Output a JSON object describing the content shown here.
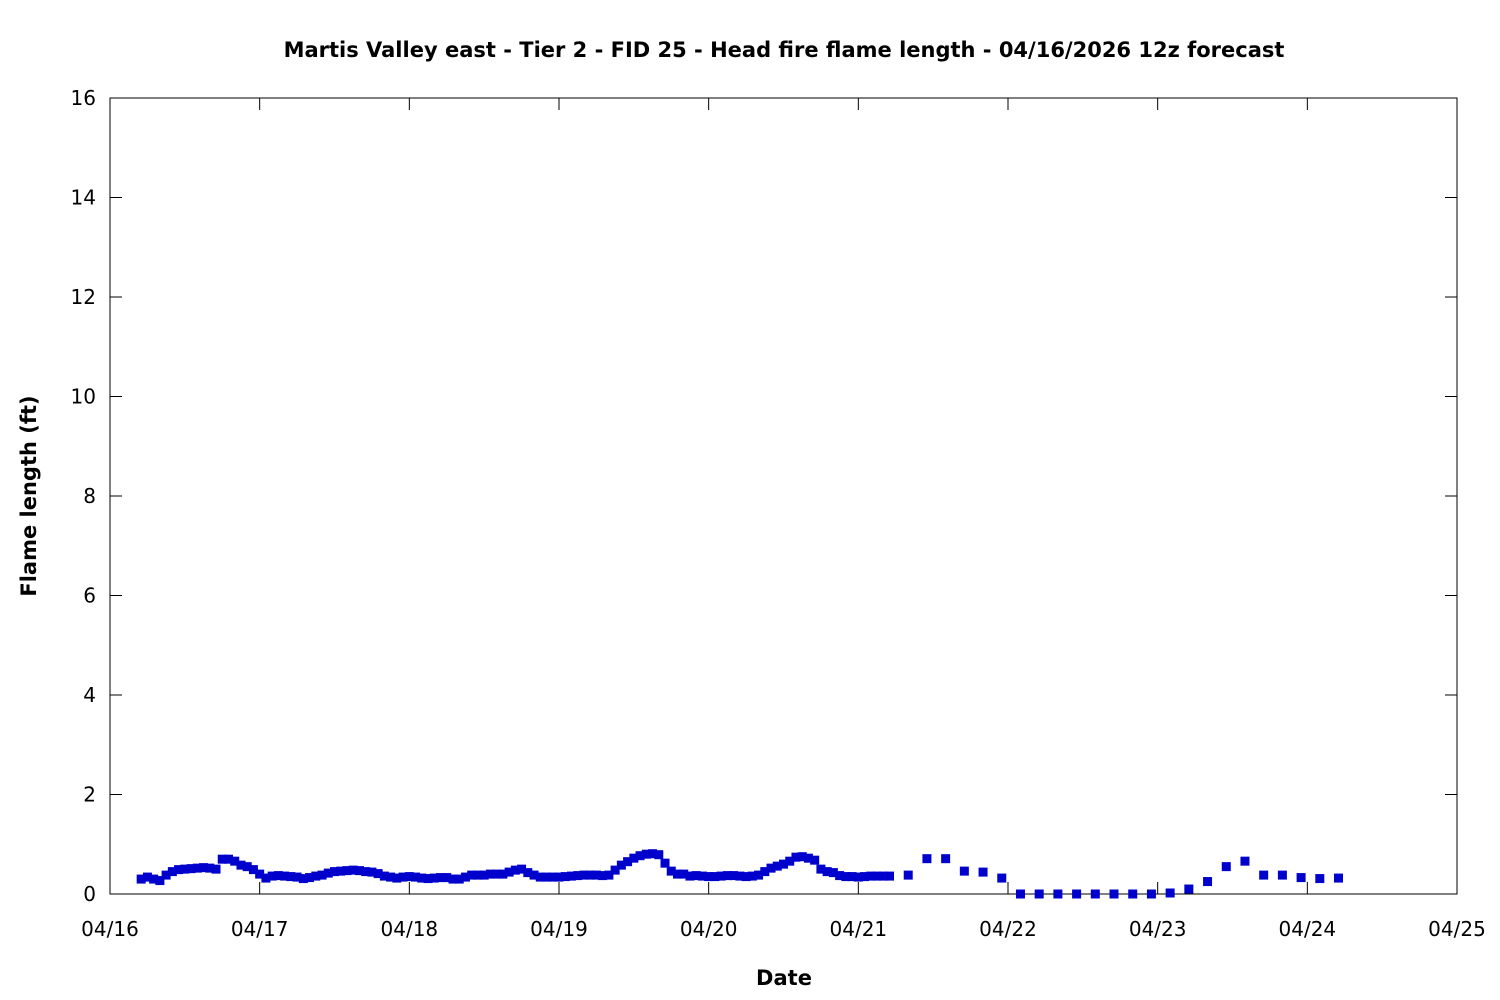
{
  "chart_data": {
    "type": "scatter",
    "title": "Martis Valley east - Tier 2 - FID 25 - Head fire flame length - 04/16/2026 12z forecast",
    "xlabel": "Date",
    "ylabel": "Flame length (ft)",
    "xlim": [
      "04/16",
      "04/25"
    ],
    "ylim": [
      0,
      16
    ],
    "x_ticks": [
      "04/16",
      "04/17",
      "04/18",
      "04/19",
      "04/20",
      "04/21",
      "04/22",
      "04/23",
      "04/24",
      "04/25"
    ],
    "y_ticks": [
      "0",
      "2",
      "4",
      "6",
      "8",
      "10",
      "12",
      "14",
      "16"
    ],
    "grid": false,
    "marker_color": "#0000cc",
    "marker": "square",
    "series": [
      {
        "points": [
          [
            "04/16 05:00",
            0.3
          ],
          [
            "04/16 06:00",
            0.34
          ],
          [
            "04/16 07:00",
            0.3
          ],
          [
            "04/16 08:00",
            0.27
          ],
          [
            "04/16 09:00",
            0.38
          ],
          [
            "04/16 10:00",
            0.45
          ],
          [
            "04/16 11:00",
            0.49
          ],
          [
            "04/16 12:00",
            0.5
          ],
          [
            "04/16 13:00",
            0.51
          ],
          [
            "04/16 14:00",
            0.52
          ],
          [
            "04/16 15:00",
            0.53
          ],
          [
            "04/16 16:00",
            0.52
          ],
          [
            "04/16 17:00",
            0.5
          ],
          [
            "04/16 18:00",
            0.7
          ],
          [
            "04/16 19:00",
            0.7
          ],
          [
            "04/16 20:00",
            0.66
          ],
          [
            "04/16 21:00",
            0.58
          ],
          [
            "04/16 22:00",
            0.55
          ],
          [
            "04/16 23:00",
            0.49
          ],
          [
            "04/17 00:00",
            0.4
          ],
          [
            "04/17 01:00",
            0.32
          ],
          [
            "04/17 02:00",
            0.36
          ],
          [
            "04/17 03:00",
            0.37
          ],
          [
            "04/17 04:00",
            0.36
          ],
          [
            "04/17 05:00",
            0.35
          ],
          [
            "04/17 06:00",
            0.34
          ],
          [
            "04/17 07:00",
            0.31
          ],
          [
            "04/17 08:00",
            0.33
          ],
          [
            "04/17 09:00",
            0.36
          ],
          [
            "04/17 10:00",
            0.38
          ],
          [
            "04/17 11:00",
            0.42
          ],
          [
            "04/17 12:00",
            0.45
          ],
          [
            "04/17 13:00",
            0.46
          ],
          [
            "04/17 14:00",
            0.47
          ],
          [
            "04/17 15:00",
            0.48
          ],
          [
            "04/17 16:00",
            0.47
          ],
          [
            "04/17 17:00",
            0.45
          ],
          [
            "04/17 18:00",
            0.44
          ],
          [
            "04/17 19:00",
            0.41
          ],
          [
            "04/17 20:00",
            0.36
          ],
          [
            "04/17 21:00",
            0.34
          ],
          [
            "04/17 22:00",
            0.32
          ],
          [
            "04/17 23:00",
            0.34
          ],
          [
            "04/18 00:00",
            0.35
          ],
          [
            "04/18 01:00",
            0.34
          ],
          [
            "04/18 02:00",
            0.32
          ],
          [
            "04/18 03:00",
            0.31
          ],
          [
            "04/18 04:00",
            0.32
          ],
          [
            "04/18 05:00",
            0.33
          ],
          [
            "04/18 06:00",
            0.33
          ],
          [
            "04/18 07:00",
            0.3
          ],
          [
            "04/18 08:00",
            0.3
          ],
          [
            "04/18 09:00",
            0.34
          ],
          [
            "04/18 10:00",
            0.38
          ],
          [
            "04/18 11:00",
            0.38
          ],
          [
            "04/18 12:00",
            0.38
          ],
          [
            "04/18 13:00",
            0.4
          ],
          [
            "04/18 14:00",
            0.4
          ],
          [
            "04/18 15:00",
            0.4
          ],
          [
            "04/18 16:00",
            0.44
          ],
          [
            "04/18 17:00",
            0.48
          ],
          [
            "04/18 18:00",
            0.5
          ],
          [
            "04/18 19:00",
            0.43
          ],
          [
            "04/18 20:00",
            0.38
          ],
          [
            "04/18 21:00",
            0.34
          ],
          [
            "04/18 22:00",
            0.34
          ],
          [
            "04/18 23:00",
            0.34
          ],
          [
            "04/19 00:00",
            0.34
          ],
          [
            "04/19 01:00",
            0.35
          ],
          [
            "04/19 02:00",
            0.36
          ],
          [
            "04/19 03:00",
            0.37
          ],
          [
            "04/19 04:00",
            0.38
          ],
          [
            "04/19 05:00",
            0.38
          ],
          [
            "04/19 06:00",
            0.38
          ],
          [
            "04/19 07:00",
            0.37
          ],
          [
            "04/19 08:00",
            0.38
          ],
          [
            "04/19 09:00",
            0.48
          ],
          [
            "04/19 10:00",
            0.58
          ],
          [
            "04/19 11:00",
            0.65
          ],
          [
            "04/19 12:00",
            0.72
          ],
          [
            "04/19 13:00",
            0.77
          ],
          [
            "04/19 14:00",
            0.8
          ],
          [
            "04/19 15:00",
            0.81
          ],
          [
            "04/19 16:00",
            0.79
          ],
          [
            "04/19 17:00",
            0.62
          ],
          [
            "04/19 18:00",
            0.46
          ],
          [
            "04/19 19:00",
            0.4
          ],
          [
            "04/19 20:00",
            0.4
          ],
          [
            "04/19 21:00",
            0.36
          ],
          [
            "04/19 22:00",
            0.37
          ],
          [
            "04/19 23:00",
            0.36
          ],
          [
            "04/20 00:00",
            0.35
          ],
          [
            "04/20 01:00",
            0.35
          ],
          [
            "04/20 02:00",
            0.36
          ],
          [
            "04/20 03:00",
            0.37
          ],
          [
            "04/20 04:00",
            0.37
          ],
          [
            "04/20 05:00",
            0.36
          ],
          [
            "04/20 06:00",
            0.35
          ],
          [
            "04/20 07:00",
            0.36
          ],
          [
            "04/20 08:00",
            0.38
          ],
          [
            "04/20 09:00",
            0.45
          ],
          [
            "04/20 10:00",
            0.52
          ],
          [
            "04/20 11:00",
            0.56
          ],
          [
            "04/20 12:00",
            0.6
          ],
          [
            "04/20 13:00",
            0.66
          ],
          [
            "04/20 14:00",
            0.74
          ],
          [
            "04/20 15:00",
            0.75
          ],
          [
            "04/20 16:00",
            0.72
          ],
          [
            "04/20 17:00",
            0.68
          ],
          [
            "04/20 18:00",
            0.5
          ],
          [
            "04/20 19:00",
            0.45
          ],
          [
            "04/20 20:00",
            0.43
          ],
          [
            "04/20 21:00",
            0.37
          ],
          [
            "04/20 22:00",
            0.35
          ],
          [
            "04/20 23:00",
            0.35
          ],
          [
            "04/21 00:00",
            0.34
          ],
          [
            "04/21 01:00",
            0.35
          ],
          [
            "04/21 02:00",
            0.36
          ],
          [
            "04/21 03:00",
            0.36
          ],
          [
            "04/21 04:00",
            0.36
          ],
          [
            "04/21 05:00",
            0.36
          ],
          [
            "04/21 08:00",
            0.38
          ],
          [
            "04/21 11:00",
            0.71
          ],
          [
            "04/21 14:00",
            0.71
          ],
          [
            "04/21 17:00",
            0.46
          ],
          [
            "04/21 20:00",
            0.44
          ],
          [
            "04/21 23:00",
            0.32
          ],
          [
            "04/22 02:00",
            0.0
          ],
          [
            "04/22 05:00",
            0.0
          ],
          [
            "04/22 08:00",
            0.0
          ],
          [
            "04/22 11:00",
            0.0
          ],
          [
            "04/22 14:00",
            0.0
          ],
          [
            "04/22 17:00",
            0.0
          ],
          [
            "04/22 20:00",
            0.0
          ],
          [
            "04/22 23:00",
            0.0
          ],
          [
            "04/23 02:00",
            0.02
          ],
          [
            "04/23 05:00",
            0.1
          ],
          [
            "04/23 08:00",
            0.25
          ],
          [
            "04/23 11:00",
            0.55
          ],
          [
            "04/23 14:00",
            0.66
          ],
          [
            "04/23 17:00",
            0.38
          ],
          [
            "04/23 20:00",
            0.38
          ],
          [
            "04/23 23:00",
            0.33
          ],
          [
            "04/24 02:00",
            0.31
          ],
          [
            "04/24 05:00",
            0.32
          ]
        ]
      }
    ]
  }
}
